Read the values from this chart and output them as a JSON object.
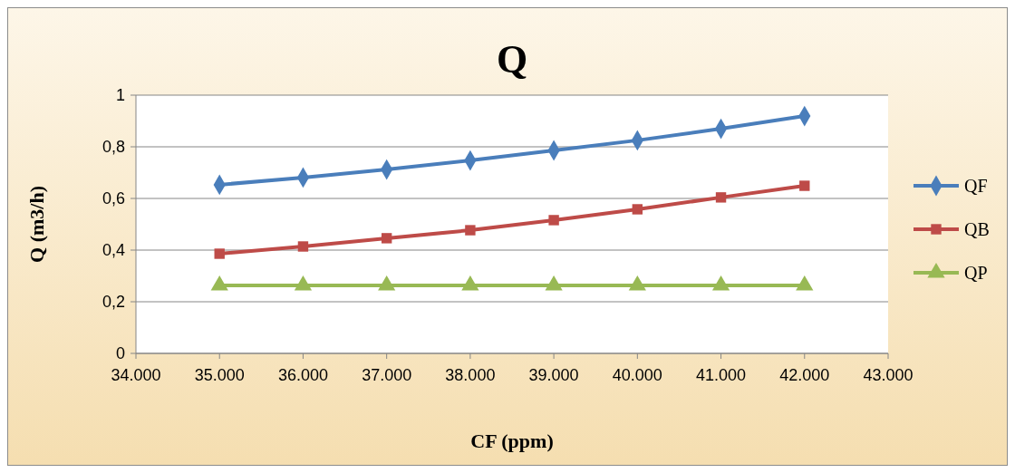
{
  "chart_data": {
    "type": "line",
    "title": "Q",
    "xlabel": "CF (ppm)",
    "ylabel": "Q (m3/h)",
    "x": [
      35000,
      36000,
      37000,
      38000,
      39000,
      40000,
      41000,
      42000
    ],
    "xlim": [
      34000,
      43000
    ],
    "xticks": [
      {
        "value": 34000,
        "label": "34.000"
      },
      {
        "value": 35000,
        "label": "35.000"
      },
      {
        "value": 36000,
        "label": "36.000"
      },
      {
        "value": 37000,
        "label": "37.000"
      },
      {
        "value": 38000,
        "label": "38.000"
      },
      {
        "value": 39000,
        "label": "39.000"
      },
      {
        "value": 40000,
        "label": "40.000"
      },
      {
        "value": 41000,
        "label": "41.000"
      },
      {
        "value": 42000,
        "label": "42.000"
      },
      {
        "value": 43000,
        "label": "43.000"
      }
    ],
    "ylim": [
      0,
      1
    ],
    "yticks": [
      0,
      {
        "value": 0.2,
        "label": "0,2"
      },
      {
        "value": 0.4,
        "label": "0,4"
      },
      {
        "value": 0.6,
        "label": "0,6"
      },
      {
        "value": 0.8,
        "label": "0,8"
      },
      1
    ],
    "grid": "y",
    "legend": "right",
    "series": [
      {
        "name": "QF",
        "color": "#4a7ebb",
        "marker": "diamond",
        "values": [
          0.653,
          0.681,
          0.712,
          0.747,
          0.786,
          0.825,
          0.87,
          0.919
        ]
      },
      {
        "name": "QB",
        "color": "#be4b48",
        "marker": "square",
        "values": [
          0.386,
          0.414,
          0.446,
          0.477,
          0.516,
          0.558,
          0.604,
          0.649
        ]
      },
      {
        "name": "QP",
        "color": "#98b954",
        "marker": "triangle",
        "values": [
          0.263,
          0.263,
          0.263,
          0.263,
          0.263,
          0.263,
          0.263,
          0.263
        ]
      }
    ]
  }
}
